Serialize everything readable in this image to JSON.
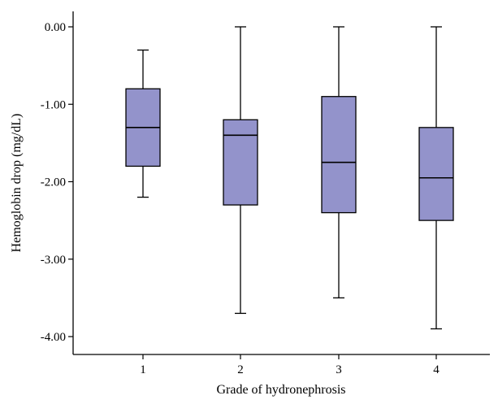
{
  "chart_data": {
    "type": "box",
    "xlabel": "Grade of hydronephrosis",
    "ylabel": "Hemoglobin drop (mg/dL)",
    "categories": [
      "1",
      "2",
      "3",
      "4"
    ],
    "yticks": [
      "0.00",
      "-1.00",
      "-2.00",
      "-3.00",
      "-4.00"
    ],
    "ylim": [
      -4.2,
      0.2
    ],
    "grid": false,
    "box_color": "#9393cb",
    "boxes": [
      {
        "category": "1",
        "min": -2.2,
        "q1": -1.8,
        "median": -1.3,
        "q3": -0.8,
        "max": -0.3
      },
      {
        "category": "2",
        "min": -3.7,
        "q1": -2.3,
        "median": -1.4,
        "q3": -1.2,
        "max": 0.0
      },
      {
        "category": "3",
        "min": -3.5,
        "q1": -2.4,
        "median": -1.75,
        "q3": -0.9,
        "max": 0.0
      },
      {
        "category": "4",
        "min": -3.9,
        "q1": -2.5,
        "median": -1.95,
        "q3": -1.3,
        "max": 0.0
      }
    ]
  }
}
